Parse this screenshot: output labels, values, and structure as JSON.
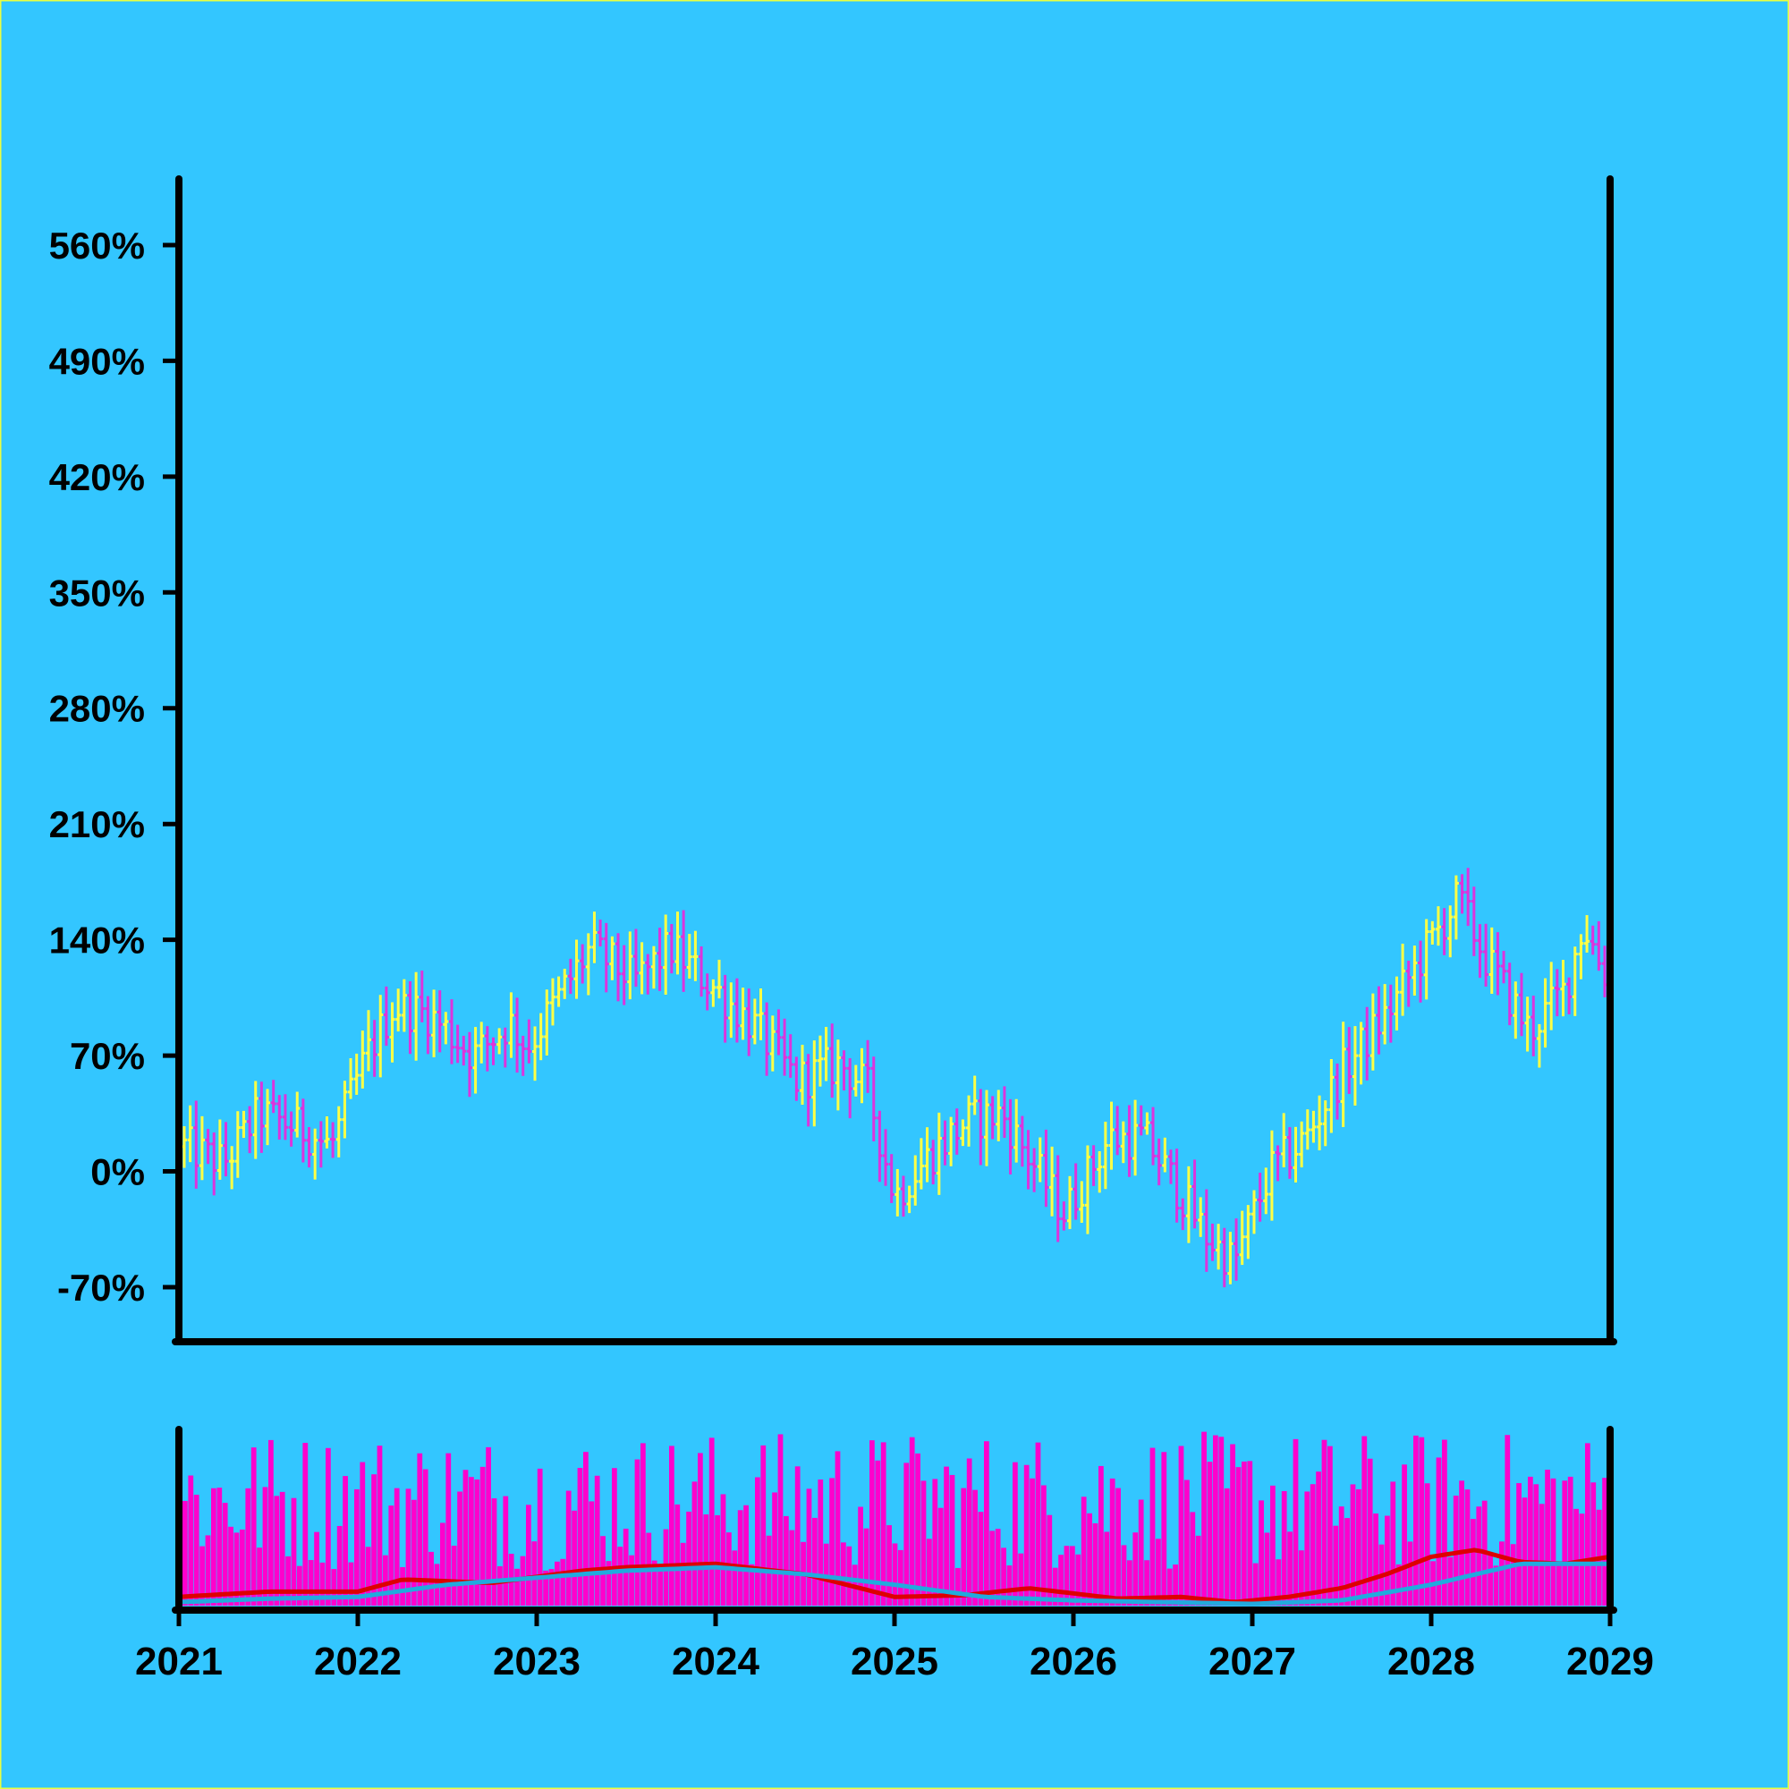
{
  "chart_data": [
    {
      "type": "ohlc",
      "y_tick_labels": [
        "560%",
        "490%",
        "420%",
        "350%",
        "280%",
        "210%",
        "140%",
        "70%",
        "0%",
        "-70%"
      ],
      "y_ticks": [
        560,
        490,
        420,
        350,
        280,
        210,
        140,
        70,
        0,
        -70
      ],
      "ylim": [
        -103,
        600
      ],
      "xlim": [
        2021.0,
        2029.0
      ],
      "x_tick_labels": [
        "2021",
        "2022",
        "2023",
        "2024",
        "2025",
        "2026",
        "2027",
        "2028",
        "2029"
      ],
      "x_ticks": [
        2021,
        2022,
        2023,
        2024,
        2025,
        2026,
        2027,
        2028,
        2029
      ],
      "grid": false,
      "colors": {
        "up": "#ffff44",
        "down": "#dd33dd",
        "axis": "#000000",
        "background": "#33c6ff"
      },
      "close_anchors": [
        [
          2021.03,
          15
        ],
        [
          2021.25,
          5
        ],
        [
          2021.45,
          35
        ],
        [
          2021.7,
          25
        ],
        [
          2021.85,
          15
        ],
        [
          2022.05,
          70
        ],
        [
          2022.2,
          100
        ],
        [
          2022.4,
          95
        ],
        [
          2022.65,
          70
        ],
        [
          2022.85,
          90
        ],
        [
          2022.95,
          75
        ],
        [
          2023.15,
          110
        ],
        [
          2023.3,
          135
        ],
        [
          2023.55,
          115
        ],
        [
          2023.75,
          135
        ],
        [
          2024.0,
          110
        ],
        [
          2024.2,
          90
        ],
        [
          2024.45,
          55
        ],
        [
          2024.7,
          65
        ],
        [
          2024.85,
          50
        ],
        [
          2025.0,
          -15
        ],
        [
          2025.2,
          10
        ],
        [
          2025.4,
          30
        ],
        [
          2025.6,
          35
        ],
        [
          2025.8,
          0
        ],
        [
          2025.95,
          -25
        ],
        [
          2026.2,
          20
        ],
        [
          2026.4,
          20
        ],
        [
          2026.55,
          -5
        ],
        [
          2026.75,
          -40
        ],
        [
          2026.9,
          -55
        ],
        [
          2027.1,
          0
        ],
        [
          2027.3,
          20
        ],
        [
          2027.5,
          60
        ],
        [
          2027.75,
          95
        ],
        [
          2027.95,
          130
        ],
        [
          2028.15,
          165
        ],
        [
          2028.3,
          130
        ],
        [
          2028.55,
          85
        ],
        [
          2028.75,
          110
        ],
        [
          2028.85,
          150
        ],
        [
          2028.97,
          120
        ]
      ]
    },
    {
      "type": "bar+line",
      "series": [
        {
          "kind": "volume bars",
          "color": "#ff00cc"
        },
        {
          "kind": "moving average",
          "color": "#dd0000"
        },
        {
          "kind": "moving average",
          "color": "#22aadd"
        }
      ],
      "volume_range": [
        20,
        100
      ],
      "avg_red_anchors": [
        [
          2021.0,
          5
        ],
        [
          2021.5,
          8
        ],
        [
          2022.0,
          8
        ],
        [
          2022.25,
          15
        ],
        [
          2022.75,
          13
        ],
        [
          2023.25,
          20
        ],
        [
          2023.5,
          22
        ],
        [
          2024.0,
          24
        ],
        [
          2024.5,
          18
        ],
        [
          2025.0,
          5
        ],
        [
          2025.4,
          6
        ],
        [
          2025.75,
          10
        ],
        [
          2026.25,
          4
        ],
        [
          2026.6,
          5
        ],
        [
          2026.9,
          2
        ],
        [
          2027.2,
          5
        ],
        [
          2027.5,
          10
        ],
        [
          2027.75,
          18
        ],
        [
          2028.0,
          28
        ],
        [
          2028.25,
          32
        ],
        [
          2028.5,
          25
        ],
        [
          2028.75,
          24
        ],
        [
          2029.0,
          28
        ]
      ],
      "avg_blue_anchors": [
        [
          2021.0,
          2
        ],
        [
          2021.5,
          4
        ],
        [
          2022.0,
          5
        ],
        [
          2022.5,
          12
        ],
        [
          2023.0,
          16
        ],
        [
          2023.5,
          20
        ],
        [
          2024.0,
          22
        ],
        [
          2024.5,
          18
        ],
        [
          2025.0,
          12
        ],
        [
          2025.5,
          5
        ],
        [
          2026.0,
          3
        ],
        [
          2026.5,
          2
        ],
        [
          2027.0,
          1
        ],
        [
          2027.5,
          3
        ],
        [
          2028.0,
          12
        ],
        [
          2028.5,
          24
        ],
        [
          2029.0,
          24
        ]
      ]
    }
  ]
}
